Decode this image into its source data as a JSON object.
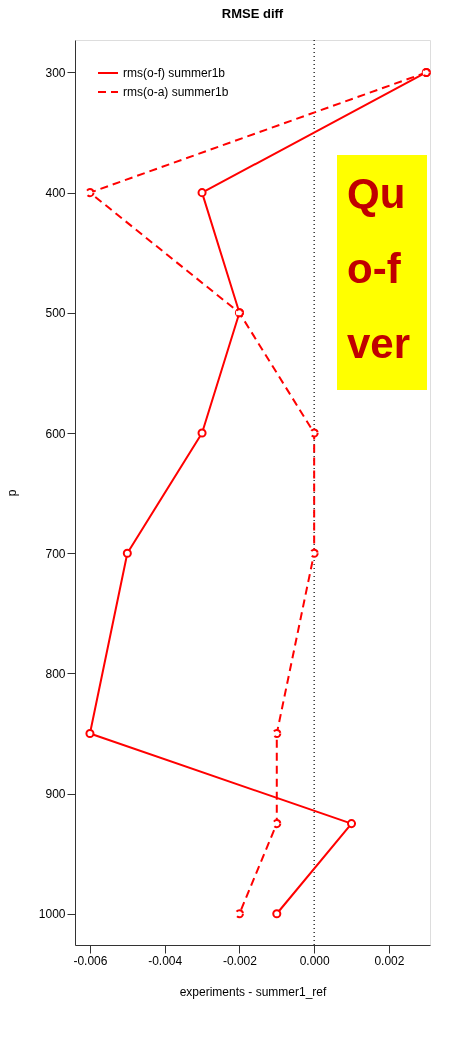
{
  "chart_data": {
    "type": "line",
    "orientation": "horizontal",
    "title": "RMSE diff",
    "xlabel": "experiments - summer1_ref",
    "ylabel": "p",
    "x": [
      300,
      400,
      500,
      600,
      700,
      850,
      925,
      1000
    ],
    "series": [
      {
        "name": "rms(o-f) summer1b",
        "color": "#ff0000",
        "line_style": "solid",
        "values": [
          0.003,
          -0.003,
          -0.002,
          -0.003,
          -0.005,
          -0.006,
          0.001,
          -0.001
        ]
      },
      {
        "name": "rms(o-a) summer1b",
        "color": "#ff0000",
        "line_style": "dashed",
        "values": [
          0.003,
          -0.006,
          -0.002,
          0.0,
          0.0,
          -0.001,
          -0.001,
          -0.002
        ]
      }
    ],
    "xlim": [
      -0.0064,
      0.0031
    ],
    "xticks": [
      {
        "value": -0.006,
        "label": "-0.006"
      },
      {
        "value": -0.004,
        "label": "-0.004"
      },
      {
        "value": -0.002,
        "label": "-0.002"
      },
      {
        "value": 0,
        "label": "0.000"
      },
      {
        "value": 0.002,
        "label": "0.002"
      }
    ],
    "ylim": [
      1026,
      273
    ],
    "yticks": [
      300,
      400,
      500,
      600,
      700,
      800,
      900,
      1000
    ],
    "ref_lines": [
      {
        "axis": "x",
        "value": 0,
        "color": "#000000",
        "line_style": "dotted"
      }
    ],
    "annotations": [
      "Qu",
      "o-f",
      "ver"
    ],
    "marker": "circle",
    "legend": "top left",
    "grid": false
  }
}
